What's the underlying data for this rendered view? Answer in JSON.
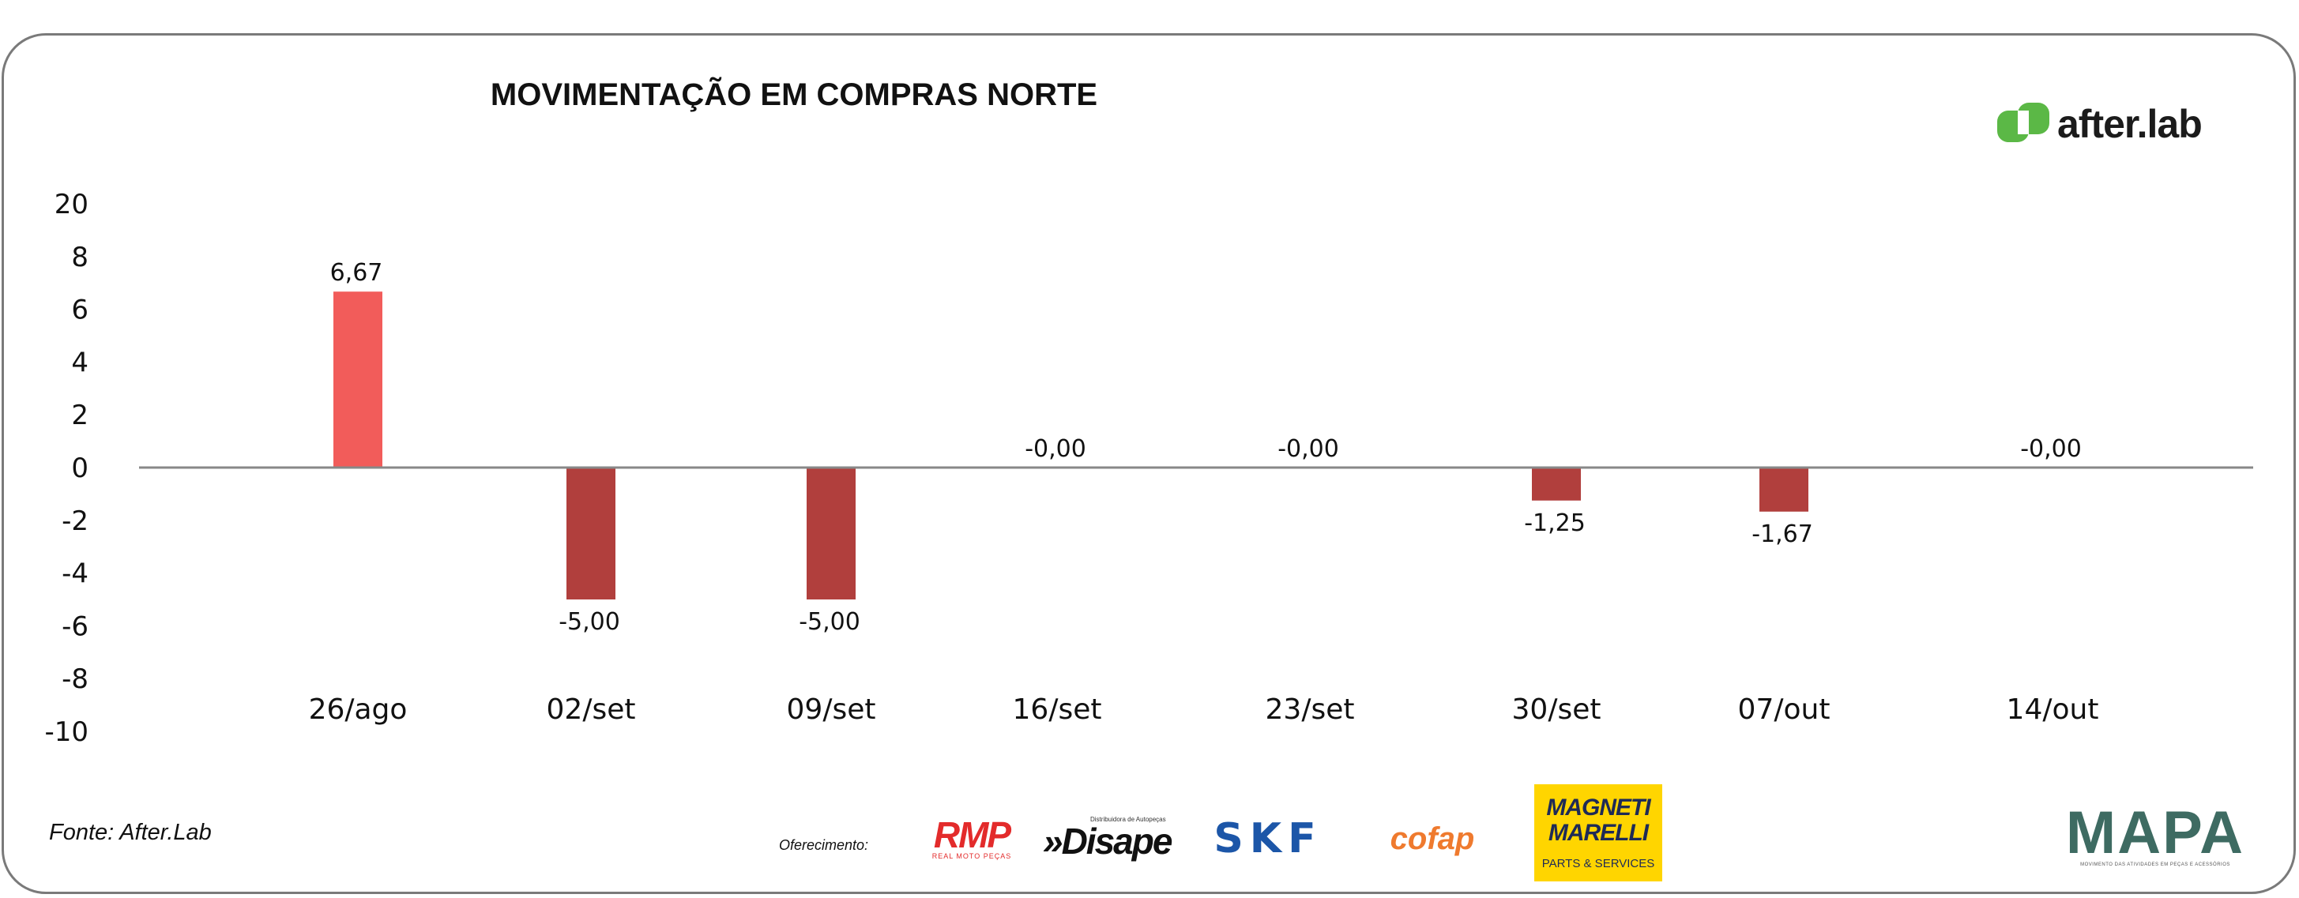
{
  "chart_data": {
    "type": "bar",
    "title": "MOVIMENTAÇÃO EM COMPRAS NORTE",
    "categories": [
      "26/ago",
      "02/set",
      "09/set",
      "16/set",
      "23/set",
      "30/set",
      "07/out",
      "14/out"
    ],
    "values": [
      6.67,
      -5.0,
      -5.0,
      -0.0,
      -0.0,
      -1.25,
      -1.67,
      -0.0
    ],
    "data_labels": [
      "6,67",
      "-5,00",
      "-5,00",
      "-0,00",
      "-0,00",
      "-1,25",
      "-1,67",
      "-0,00"
    ],
    "yticks": [
      "20",
      "8",
      "6",
      "4",
      "2",
      "0",
      "-2",
      "-4",
      "-6",
      "-8",
      "-10"
    ],
    "ylim": [
      -10,
      20
    ],
    "xlabel": "",
    "ylabel": "",
    "grid": false,
    "colors": {
      "positive": "#f25c5a",
      "negative": "#b13f3d",
      "axis": "#888888"
    }
  },
  "footer": {
    "source": "Fonte: After.Lab",
    "sponsor_label": "Oferecimento:"
  },
  "logos": {
    "brand": "after.lab",
    "brand_icon": "afterlab-logo-icon",
    "brand_color": "#5bb846",
    "rmp": "RMP",
    "rmp_sub": "REAL MOTO PEÇAS",
    "disape": "»Disape",
    "disape_sub": "Distribuidora de Autopeças",
    "skf": "SKF",
    "cofap": "cofap",
    "magneti": "MAGNETI MARELLI",
    "magneti_sub": "PARTS & SERVICES",
    "mapa": "MAPA",
    "mapa_sub": "MOVIMENTO DAS ATIVIDADES EM PEÇAS E ACESSÓRIOS"
  }
}
